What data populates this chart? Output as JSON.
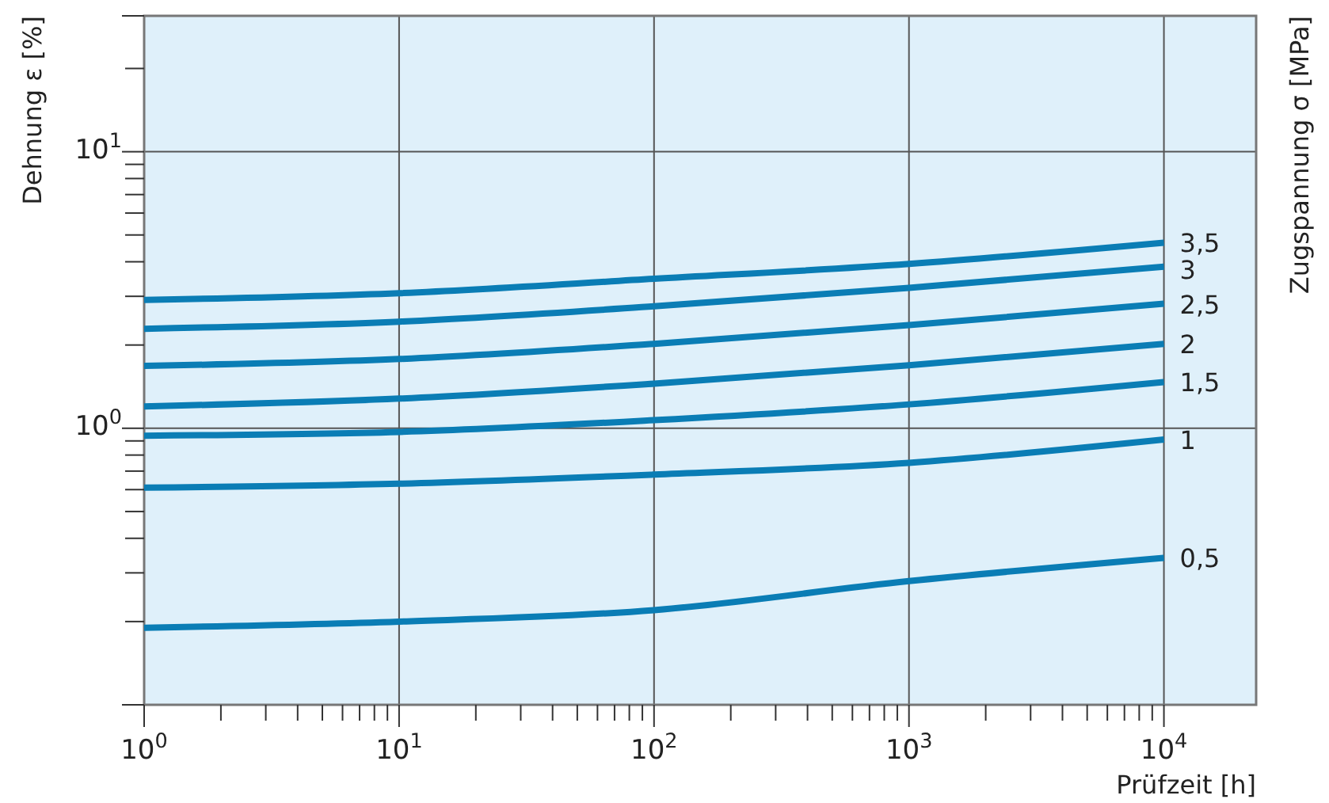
{
  "chart_data": {
    "type": "line",
    "xlabel": "Prüfzeit [h]",
    "ylabel": "Dehnung ε [%]",
    "y2label": "Zugspannung σ [MPa]",
    "log": "xy",
    "grid": true,
    "marker": "none",
    "line_style": "solid",
    "xlim": [
      1,
      23000
    ],
    "ylim": [
      0.1,
      31
    ],
    "xticks": [
      {
        "value": 1,
        "label": "10$^{0}$"
      },
      {
        "value": 2,
        "label": null
      },
      {
        "value": 3,
        "label": null
      },
      {
        "value": 4,
        "label": null
      },
      {
        "value": 5,
        "label": null
      },
      {
        "value": 6,
        "label": null
      },
      {
        "value": 7,
        "label": null
      },
      {
        "value": 8,
        "label": null
      },
      {
        "value": 9,
        "label": null
      },
      {
        "value": 10,
        "label": "10$^{1}$"
      },
      {
        "value": 20,
        "label": null
      },
      {
        "value": 30,
        "label": null
      },
      {
        "value": 40,
        "label": null
      },
      {
        "value": 50,
        "label": null
      },
      {
        "value": 60,
        "label": null
      },
      {
        "value": 70,
        "label": null
      },
      {
        "value": 80,
        "label": null
      },
      {
        "value": 90,
        "label": null
      },
      {
        "value": 100,
        "label": "10$^{2}$"
      },
      {
        "value": 200,
        "label": null
      },
      {
        "value": 300,
        "label": null
      },
      {
        "value": 400,
        "label": null
      },
      {
        "value": 500,
        "label": null
      },
      {
        "value": 600,
        "label": null
      },
      {
        "value": 700,
        "label": null
      },
      {
        "value": 800,
        "label": null
      },
      {
        "value": 900,
        "label": null
      },
      {
        "value": 1000,
        "label": "10$^{3}$"
      },
      {
        "value": 2000,
        "label": null
      },
      {
        "value": 3000,
        "label": null
      },
      {
        "value": 4000,
        "label": null
      },
      {
        "value": 5000,
        "label": null
      },
      {
        "value": 6000,
        "label": null
      },
      {
        "value": 7000,
        "label": null
      },
      {
        "value": 8000,
        "label": null
      },
      {
        "value": 9000,
        "label": null
      },
      {
        "value": 10000,
        "label": "10$^{4}$"
      }
    ],
    "yticks": [
      {
        "value": 0.2,
        "label": null
      },
      {
        "value": 0.3,
        "label": null
      },
      {
        "value": 0.4,
        "label": null
      },
      {
        "value": 0.5,
        "label": null
      },
      {
        "value": 0.6,
        "label": null
      },
      {
        "value": 0.7,
        "label": null
      },
      {
        "value": 0.8,
        "label": null
      },
      {
        "value": 0.9,
        "label": null
      },
      {
        "value": 1,
        "label": "10$^{0}$"
      },
      {
        "value": 2,
        "label": null
      },
      {
        "value": 3,
        "label": null
      },
      {
        "value": 4,
        "label": null
      },
      {
        "value": 5,
        "label": null
      },
      {
        "value": 6,
        "label": null
      },
      {
        "value": 7,
        "label": null
      },
      {
        "value": 8,
        "label": null
      },
      {
        "value": 9,
        "label": null
      },
      {
        "value": 10,
        "label": "10$^{1}$"
      },
      {
        "value": 20,
        "label": null
      }
    ],
    "x": [
      1,
      10,
      100,
      1000,
      10000
    ],
    "series": [
      {
        "name": "3,5",
        "color": "#0a7db5",
        "values": [
          2.91,
          3.08,
          3.47,
          3.93,
          4.69
        ]
      },
      {
        "name": "3",
        "color": "#0a7db5",
        "values": [
          2.29,
          2.43,
          2.76,
          3.22,
          3.84
        ]
      },
      {
        "name": "2,5",
        "color": "#0a7db5",
        "values": [
          1.68,
          1.78,
          2.02,
          2.36,
          2.82
        ]
      },
      {
        "name": "2",
        "color": "#0a7db5",
        "values": [
          1.2,
          1.28,
          1.45,
          1.69,
          2.02
        ]
      },
      {
        "name": "1,5",
        "color": "#0a7db5",
        "values": [
          0.94,
          0.97,
          1.07,
          1.22,
          1.47
        ]
      },
      {
        "name": "1",
        "color": "#0a7db5",
        "values": [
          0.61,
          0.63,
          0.68,
          0.75,
          0.91
        ]
      },
      {
        "name": "0,5",
        "color": "#0a7db5",
        "values": [
          0.19,
          0.2,
          0.22,
          0.28,
          0.34
        ]
      }
    ]
  }
}
